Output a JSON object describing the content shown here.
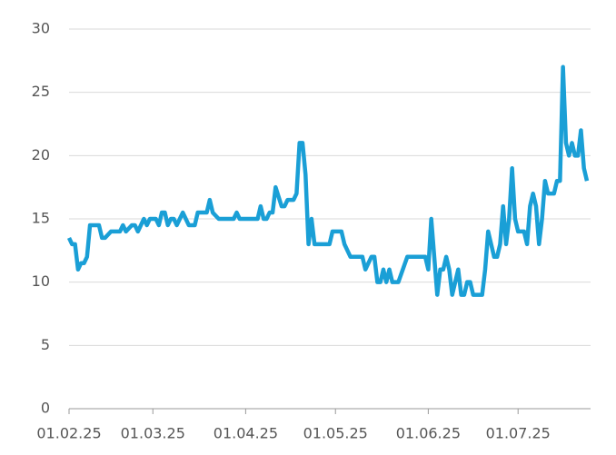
{
  "chart_data": {
    "type": "line",
    "x": [
      "01.02.25",
      "02.02.25",
      "03.02.25",
      "04.02.25",
      "05.02.25",
      "06.02.25",
      "07.02.25",
      "08.02.25",
      "11.02.25",
      "12.02.25",
      "13.02.25",
      "15.02.25",
      "18.02.25",
      "19.02.25",
      "20.02.25",
      "22.02.25",
      "23.02.25",
      "24.02.25",
      "26.02.25",
      "27.02.25",
      "28.02.25",
      "02.03.25",
      "03.03.25",
      "04.03.25",
      "05.03.25",
      "06.03.25",
      "07.03.25",
      "08.03.25",
      "09.03.25",
      "10.03.25",
      "11.03.25",
      "12.03.25",
      "13.03.25",
      "15.03.25",
      "16.03.25",
      "19.03.25",
      "20.03.25",
      "21.03.25",
      "23.03.25",
      "28.03.25",
      "29.03.25",
      "30.03.25",
      "05.04.25",
      "06.04.25",
      "07.04.25",
      "08.04.25",
      "09.04.25",
      "10.04.25",
      "11.04.25",
      "13.04.25",
      "14.04.25",
      "15.04.25",
      "17.04.25",
      "18.04.25",
      "19.04.25",
      "20.04.25",
      "21.04.25",
      "22.04.25",
      "23.04.25",
      "24.04.25",
      "29.04.25",
      "30.04.25",
      "03.05.25",
      "04.05.25",
      "06.05.25",
      "10.05.25",
      "11.05.25",
      "13.05.25",
      "14.05.25",
      "15.05.25",
      "16.05.25",
      "17.05.25",
      "18.05.25",
      "19.05.25",
      "20.05.25",
      "22.05.25",
      "25.05.25",
      "30.05.25",
      "31.05.25",
      "01.06.25",
      "02.06.25",
      "03.06.25",
      "04.06.25",
      "05.06.25",
      "06.06.25",
      "07.06.25",
      "08.06.25",
      "09.06.25",
      "10.06.25",
      "11.06.25",
      "12.06.25",
      "13.06.25",
      "14.06.25",
      "15.06.25",
      "16.06.25",
      "19.06.25",
      "20.06.25",
      "21.06.25",
      "22.06.25",
      "23.06.25",
      "24.06.25",
      "25.06.25",
      "26.06.25",
      "27.06.25",
      "28.06.25",
      "29.06.25",
      "30.06.25",
      "01.07.25",
      "03.07.25",
      "04.07.25",
      "05.07.25",
      "06.07.25",
      "07.07.25",
      "08.07.25",
      "09.07.25",
      "10.07.25",
      "11.07.25",
      "13.07.25",
      "14.07.25",
      "15.07.25",
      "16.07.25",
      "17.07.25",
      "18.07.25",
      "19.07.25",
      "20.07.25",
      "21.07.25",
      "22.07.25",
      "23.07.25",
      "24.07.25"
    ],
    "series": [
      {
        "color": "#1a9fd6",
        "values": [
          13.5,
          13,
          13,
          11,
          11.5,
          11.5,
          12,
          14.5,
          14.5,
          13.5,
          13.5,
          14,
          14,
          14.5,
          14,
          14.5,
          14.5,
          14,
          15,
          14.5,
          15,
          15,
          14.5,
          15.5,
          15.5,
          14.5,
          15,
          15,
          14.5,
          15,
          15.5,
          15,
          14.5,
          14.5,
          15.5,
          15.5,
          16.5,
          15.5,
          15,
          15,
          15.5,
          15,
          15,
          16,
          15,
          15,
          15.5,
          15.5,
          17.5,
          16,
          16,
          16.5,
          16.5,
          17,
          21,
          21,
          18.5,
          13,
          15,
          13,
          13,
          14,
          14,
          13,
          12,
          12,
          11,
          12,
          12,
          10,
          10,
          11,
          10,
          11,
          10,
          10,
          12,
          12,
          12,
          11,
          15,
          12,
          9,
          11,
          11,
          12,
          11,
          9,
          10,
          11,
          9,
          9,
          10,
          10,
          9,
          9,
          11,
          14,
          13,
          12,
          12,
          13,
          16,
          13,
          15,
          19,
          15,
          14,
          14,
          13,
          16,
          17,
          16,
          13,
          15,
          18,
          17,
          17,
          18,
          18,
          27,
          21,
          20,
          21,
          20,
          20,
          22,
          19,
          18
        ]
      }
    ],
    "xlim": [
      "01.02.25",
      "24.07.25"
    ],
    "xticks": [
      "01.02.25",
      "01.03.25",
      "01.04.25",
      "01.05.25",
      "01.06.25",
      "01.07.25"
    ],
    "ylim": [
      0,
      30
    ],
    "yticks": [
      0,
      5,
      10,
      15,
      20,
      25,
      30
    ],
    "grid": true
  }
}
